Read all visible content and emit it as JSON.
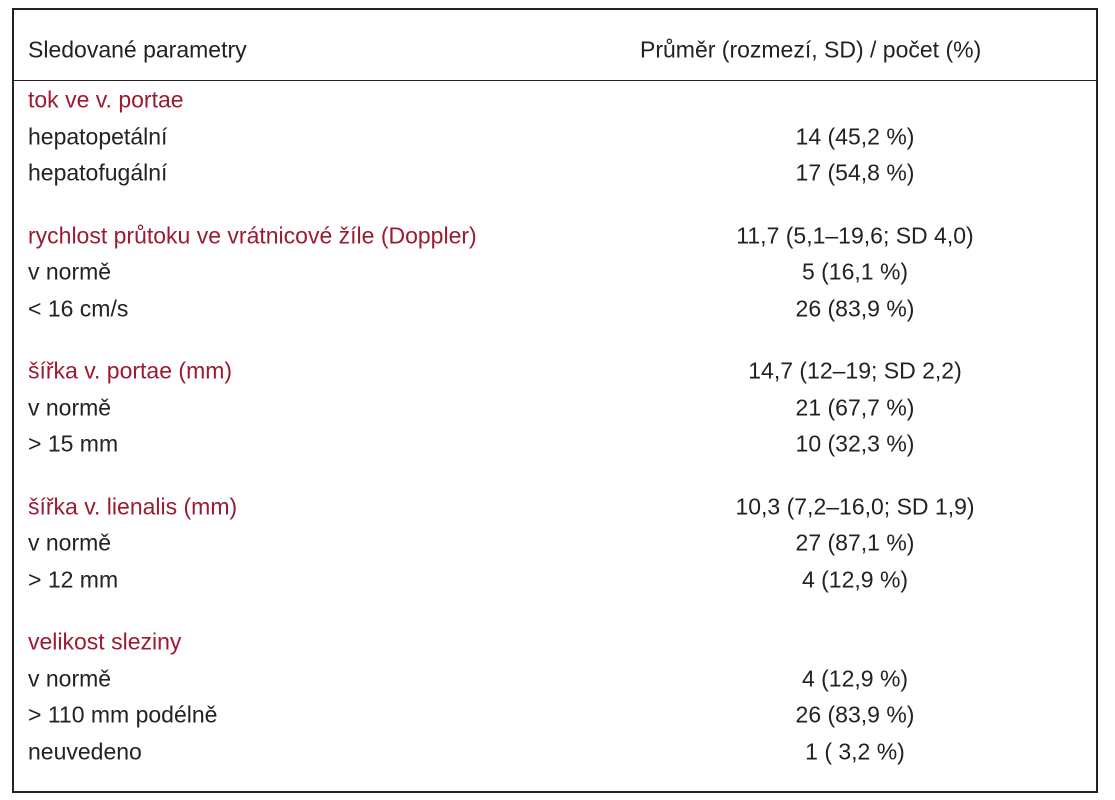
{
  "header": [
    "Sledované parametry",
    "Průměr (rozmezí, SD) / počet (%)"
  ],
  "sections": [
    {
      "title": "tok ve v. portae",
      "rows": [
        [
          "hepatopetální",
          "14 (45,2 %)"
        ],
        [
          "hepatofugální",
          "17 (54,8 %)"
        ]
      ]
    },
    {
      "title": "rychlost průtoku ve vrátnicové žíle (Doppler)",
      "value": "11,7 (5,1–19,6; SD 4,0)",
      "rows": [
        [
          "v normě",
          "5 (16,1 %)"
        ],
        [
          "< 16 cm/s",
          "26 (83,9 %)"
        ]
      ]
    },
    {
      "title": "šířka v. portae (mm)",
      "value": "14,7 (12–19; SD 2,2)",
      "rows": [
        [
          "v normě",
          "21 (67,7 %)"
        ],
        [
          "> 15 mm",
          "10 (32,3 %)"
        ]
      ]
    },
    {
      "title": "šířka v. lienalis (mm)",
      "value": "10,3 (7,2–16,0; SD 1,9)",
      "rows": [
        [
          "v normě",
          "27 (87,1 %)"
        ],
        [
          "> 12 mm",
          "4 (12,9 %)"
        ]
      ]
    },
    {
      "title": "velikost sleziny",
      "rows": [
        [
          "v normě",
          "4 (12,9 %)"
        ],
        [
          "> 110 mm podélně",
          "26 (83,9 %)"
        ],
        [
          "neuvedeno",
          "1 ( 3,2 %)"
        ]
      ]
    }
  ]
}
